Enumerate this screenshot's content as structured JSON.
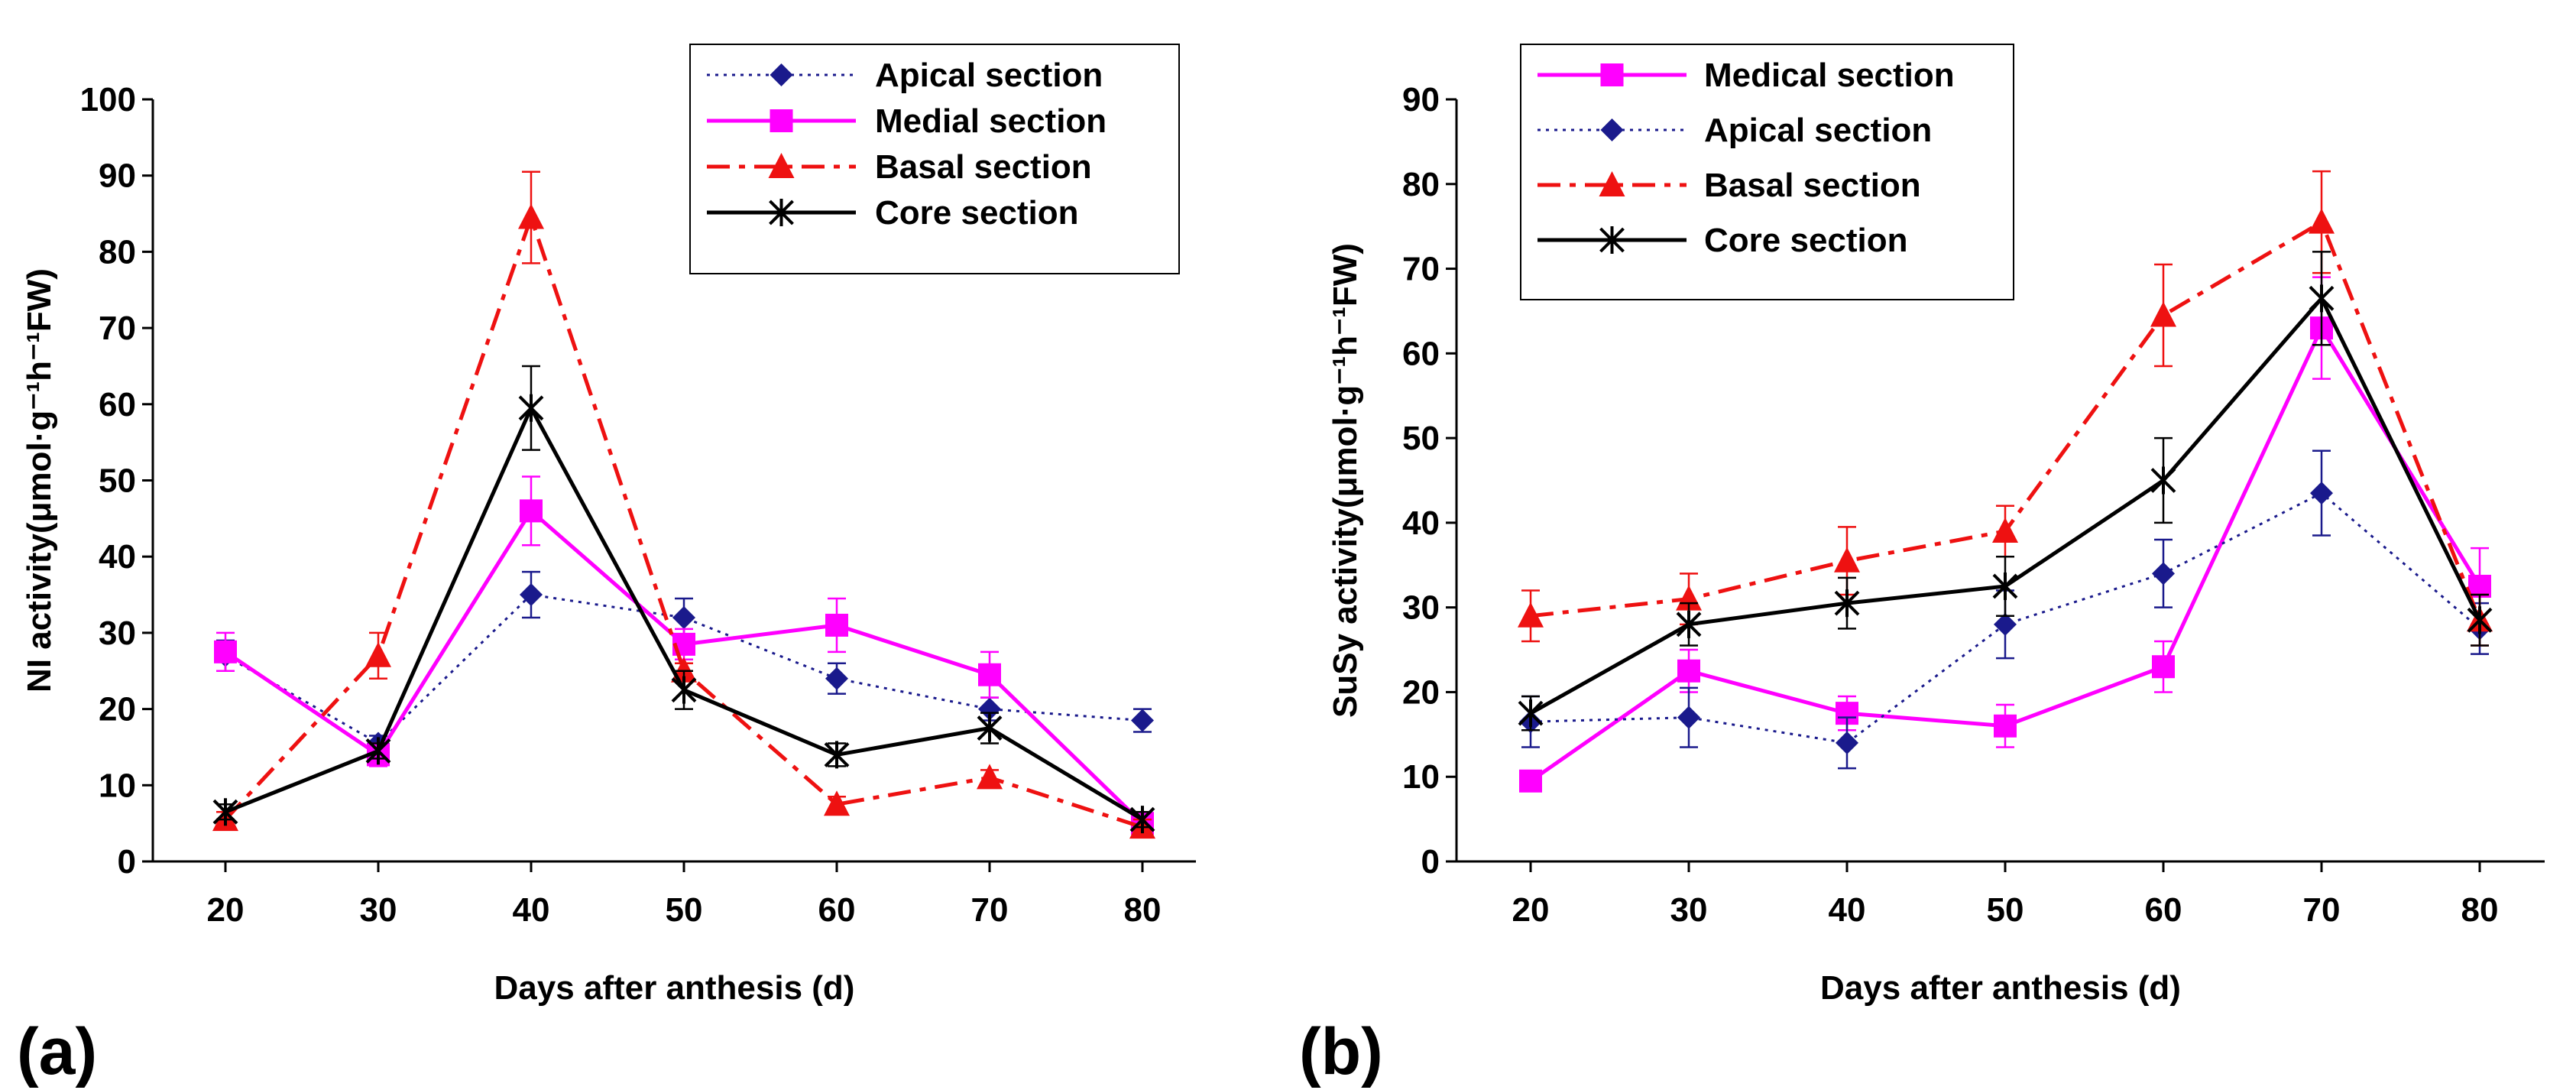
{
  "chart_data": [
    {
      "type": "line",
      "panel_label": "(a)",
      "xlabel": "Days after anthesis (d)",
      "ylabel": "NI activity(μmol·g⁻¹h⁻¹FW)",
      "categories": [
        20,
        30,
        40,
        50,
        60,
        70,
        80
      ],
      "ylim": [
        0,
        100
      ],
      "yticks": [
        0,
        10,
        20,
        30,
        40,
        50,
        60,
        70,
        80,
        90,
        100
      ],
      "grid": false,
      "legend_position": "top-right",
      "series": [
        {
          "name": "Apical section",
          "color": "#1a1a8c",
          "marker": "diamond",
          "line": "dotted",
          "values": [
            27,
            15.5,
            35,
            32,
            24,
            20,
            18.5
          ],
          "errors": [
            2,
            1,
            3,
            2.5,
            2,
            1.5,
            1.5
          ]
        },
        {
          "name": "Medial section",
          "color": "#ff00ff",
          "marker": "square",
          "line": "solid",
          "values": [
            27.5,
            14,
            46,
            28.5,
            31,
            24.5,
            5
          ],
          "errors": [
            2.5,
            1.5,
            4.5,
            2,
            3.5,
            3,
            1
          ]
        },
        {
          "name": "Basal section",
          "color": "#ee1111",
          "marker": "triangle",
          "line": "dashdot",
          "values": [
            5.5,
            27,
            84.5,
            25,
            7.5,
            11,
            4.5
          ],
          "errors": [
            1,
            3,
            6,
            1,
            1,
            1,
            1
          ]
        },
        {
          "name": "Core section",
          "color": "#000000",
          "marker": "star",
          "line": "solid",
          "values": [
            6.5,
            14.5,
            59.5,
            22.5,
            14,
            17.5,
            5.5
          ],
          "errors": [
            1,
            1,
            5.5,
            2.5,
            1.5,
            2,
            1
          ]
        }
      ]
    },
    {
      "type": "line",
      "panel_label": "(b)",
      "xlabel": "Days after anthesis (d)",
      "ylabel": "SuSy activity(μmol·g⁻¹h⁻¹FW)",
      "categories": [
        20,
        30,
        40,
        50,
        60,
        70,
        80
      ],
      "ylim": [
        0,
        90
      ],
      "yticks": [
        0,
        10,
        20,
        30,
        40,
        50,
        60,
        70,
        80,
        90
      ],
      "grid": false,
      "legend_position": "top-left",
      "series": [
        {
          "name": "Medical section",
          "color": "#ff00ff",
          "marker": "square",
          "line": "solid",
          "values": [
            9.5,
            22.5,
            17.5,
            16,
            23,
            63,
            32.5
          ],
          "errors": [
            1,
            2.5,
            2,
            2.5,
            3,
            6,
            4.5
          ]
        },
        {
          "name": "Apical section",
          "color": "#1a1a8c",
          "marker": "diamond",
          "line": "dotted",
          "values": [
            16.5,
            17,
            14,
            28,
            34,
            43.5,
            27.5
          ],
          "errors": [
            3,
            3.5,
            3,
            4,
            4,
            5,
            3
          ]
        },
        {
          "name": "Basal section",
          "color": "#ee1111",
          "marker": "triangle",
          "line": "dashdot",
          "values": [
            29,
            31,
            35.5,
            39,
            64.5,
            75.5,
            28.5
          ],
          "errors": [
            3,
            3,
            4,
            3,
            6,
            6,
            3
          ]
        },
        {
          "name": "Core section",
          "color": "#000000",
          "marker": "star",
          "line": "solid",
          "values": [
            17.5,
            28,
            30.5,
            32.5,
            45,
            66.5,
            28.5
          ],
          "errors": [
            2,
            2.5,
            3,
            3.5,
            5,
            5.5,
            3
          ]
        }
      ]
    }
  ]
}
